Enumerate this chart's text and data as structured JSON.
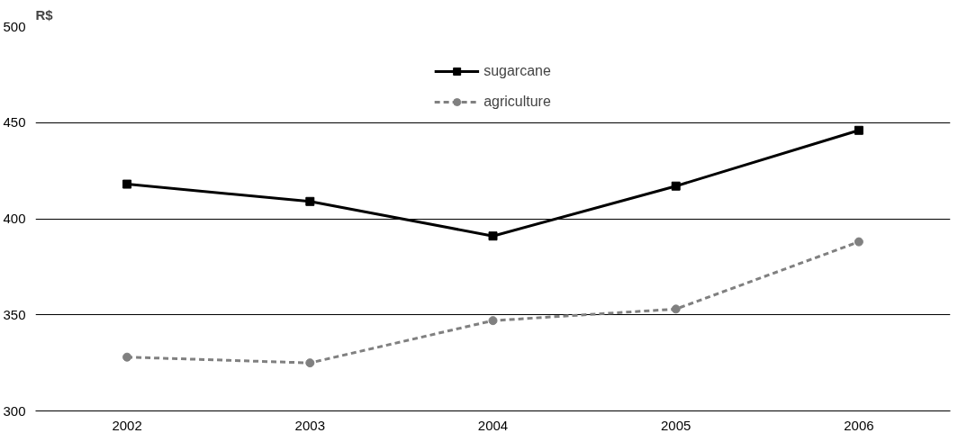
{
  "chart_data": {
    "type": "line",
    "ylabel": "R$",
    "categories": [
      "2002",
      "2003",
      "2004",
      "2005",
      "2006"
    ],
    "series": [
      {
        "name": "sugarcane",
        "color": "#000000",
        "values": [
          418,
          409,
          391,
          417,
          446
        ],
        "marker": "square",
        "line_style": "solid"
      },
      {
        "name": "agriculture",
        "color": "#808080",
        "values": [
          328,
          325,
          347,
          353,
          388
        ],
        "marker": "circle",
        "line_style": "dashed"
      }
    ],
    "ylim": [
      300,
      500
    ],
    "yticks": [
      300,
      350,
      400,
      450,
      500
    ],
    "grid": "y",
    "legend": "top"
  }
}
